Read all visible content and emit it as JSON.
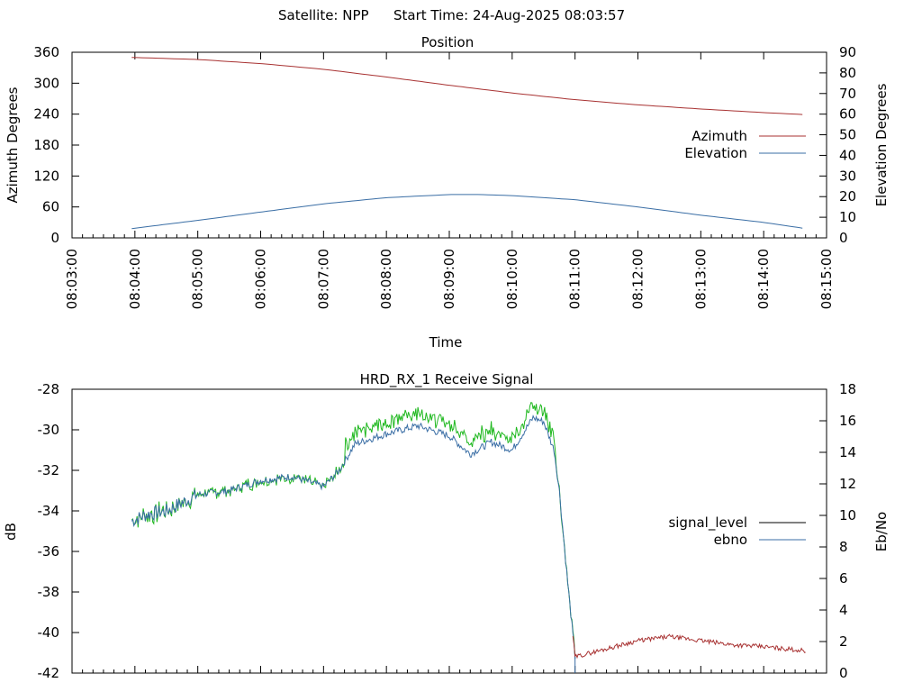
{
  "header": {
    "satellite": "Satellite: NPP",
    "start_time": "Start Time: 24-Aug-2025 08:03:57"
  },
  "colors": {
    "azimuth": "#a83232",
    "elevation": "#3a6ea5",
    "signal_level": "#000000",
    "ebno": "#3a6ea5",
    "ebno_high": "#1fb81f",
    "low_signal": "#a83232",
    "axis": "#000000"
  },
  "chart_data": [
    {
      "type": "line",
      "title": "Position",
      "xlabel": "Time",
      "ylabel": "Azimuth Degrees",
      "y2label": "Elevation Degrees",
      "xlim": [
        "08:03:00",
        "08:15:00"
      ],
      "ylim": [
        0,
        360
      ],
      "y2lim": [
        0,
        90
      ],
      "x_ticks": [
        "08:03:00",
        "08:04:00",
        "08:05:00",
        "08:06:00",
        "08:07:00",
        "08:08:00",
        "08:09:00",
        "08:10:00",
        "08:11:00",
        "08:12:00",
        "08:13:00",
        "08:14:00",
        "08:15:00"
      ],
      "y_ticks": [
        0,
        60,
        120,
        180,
        240,
        300,
        360
      ],
      "y2_ticks": [
        0,
        10,
        20,
        30,
        40,
        50,
        60,
        70,
        80,
        90
      ],
      "legend_position": "right",
      "series": [
        {
          "name": "Azimuth",
          "axis": "y",
          "x": [
            "08:03:57",
            "08:05:00",
            "08:06:00",
            "08:07:00",
            "08:08:00",
            "08:09:00",
            "08:10:00",
            "08:11:00",
            "08:12:00",
            "08:13:00",
            "08:14:00",
            "08:14:40"
          ],
          "y": [
            350,
            346,
            338,
            327,
            312,
            296,
            281,
            268,
            258,
            250,
            243,
            239
          ]
        },
        {
          "name": "Elevation",
          "axis": "y2",
          "x": [
            "08:03:57",
            "08:05:00",
            "08:06:00",
            "08:07:00",
            "08:08:00",
            "08:09:00",
            "08:09:30",
            "08:10:00",
            "08:11:00",
            "08:12:00",
            "08:13:00",
            "08:14:00",
            "08:14:40"
          ],
          "y": [
            4.5,
            8.5,
            12.5,
            16.5,
            19.5,
            21,
            21,
            20.5,
            18.5,
            15,
            11,
            7.5,
            4.5
          ]
        }
      ]
    },
    {
      "type": "line",
      "title": "HRD_RX_1 Receive Signal",
      "xlabel": "",
      "ylabel": "dB",
      "y2label": "Eb/No",
      "xlim": [
        "08:03:00",
        "08:15:00"
      ],
      "ylim": [
        -42,
        -28
      ],
      "y2lim": [
        0,
        18
      ],
      "y_ticks": [
        -42,
        -40,
        -38,
        -36,
        -34,
        -32,
        -30,
        -28
      ],
      "y2_ticks": [
        0,
        2,
        4,
        6,
        8,
        10,
        12,
        14,
        16,
        18
      ],
      "legend_position": "right",
      "series": [
        {
          "name": "signal_level",
          "axis": "y",
          "x": [
            "08:03:57",
            "08:04:10",
            "08:04:30",
            "08:05:00",
            "08:05:30",
            "08:06:00",
            "08:06:30",
            "08:07:00",
            "08:07:15",
            "08:07:30",
            "08:08:00",
            "08:08:30",
            "08:09:00",
            "08:09:20",
            "08:09:40",
            "08:10:00",
            "08:10:20",
            "08:10:30",
            "08:10:40",
            "08:10:45",
            "08:10:52",
            "08:11:00",
            "08:11:30",
            "08:12:00",
            "08:12:30",
            "08:13:00",
            "08:13:30",
            "08:14:00",
            "08:14:40"
          ],
          "y": [
            -34.5,
            -34.2,
            -34.0,
            -33.2,
            -33.0,
            -32.5,
            -32.3,
            -32.8,
            -32.0,
            -30.7,
            -30.2,
            -29.8,
            -30.3,
            -31.2,
            -30.6,
            -31.0,
            -29.4,
            -29.6,
            -31.0,
            -33.0,
            -37.0,
            -41.2,
            -40.8,
            -40.4,
            -40.2,
            -40.4,
            -40.6,
            -40.7,
            -40.9
          ]
        },
        {
          "name": "ebno",
          "axis": "y2",
          "x": [
            "08:03:57",
            "08:04:10",
            "08:04:30",
            "08:05:00",
            "08:05:30",
            "08:06:00",
            "08:06:30",
            "08:07:00",
            "08:07:15",
            "08:07:30",
            "08:08:00",
            "08:08:30",
            "08:09:00",
            "08:09:20",
            "08:09:40",
            "08:10:00",
            "08:10:20",
            "08:10:30",
            "08:10:40",
            "08:10:45",
            "08:10:52",
            "08:11:00"
          ],
          "y": [
            9.8,
            10.2,
            10.4,
            11.1,
            11.5,
            12.0,
            12.3,
            11.8,
            12.5,
            13.9,
            14.6,
            15.1,
            14.8,
            13.7,
            14.3,
            14.0,
            15.9,
            15.6,
            13.8,
            11.5,
            7.0,
            0.0
          ]
        }
      ]
    }
  ]
}
